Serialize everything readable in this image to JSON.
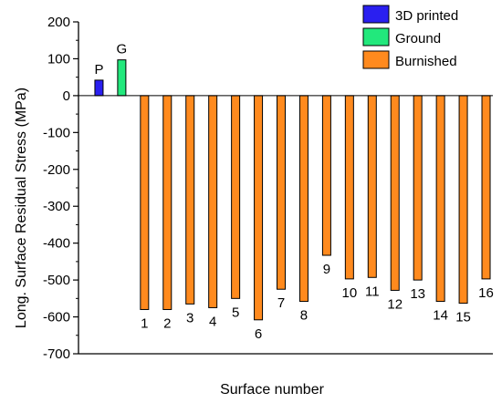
{
  "chart_data": {
    "type": "bar",
    "xlabel": "Surface number",
    "ylabel": "Long. Surface Residual Stress (MPa)",
    "ylim": [
      -700,
      200
    ],
    "yticks": [
      200,
      100,
      0,
      -100,
      -200,
      -300,
      -400,
      -500,
      -600,
      -700
    ],
    "legend_position": "top-right",
    "grid": false,
    "series": [
      {
        "name": "3D printed",
        "color": "#2a1ff0",
        "labels": [
          "P"
        ],
        "values": [
          42
        ]
      },
      {
        "name": "Ground",
        "color": "#22e87c",
        "labels": [
          "G"
        ],
        "values": [
          97
        ]
      },
      {
        "name": "Burnished",
        "color": "#ff8a1e",
        "labels": [
          "1",
          "2",
          "3",
          "4",
          "5",
          "6",
          "7",
          "8",
          "9",
          "10",
          "11",
          "12",
          "13",
          "14",
          "15",
          "16"
        ],
        "values": [
          -580,
          -580,
          -565,
          -575,
          -550,
          -608,
          -525,
          -558,
          -433,
          -497,
          -493,
          -528,
          -500,
          -558,
          -563,
          -497
        ]
      }
    ]
  }
}
